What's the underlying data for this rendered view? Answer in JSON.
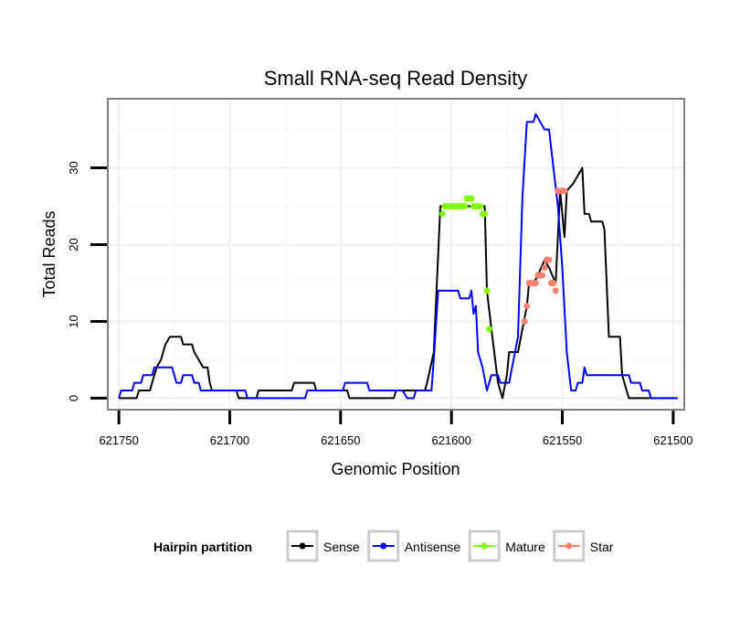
{
  "chart_data": {
    "type": "line",
    "title": "Small RNA-seq Read Density",
    "xlabel": "Genomic Position",
    "ylabel": "Total Reads",
    "xlim": [
      621755,
      621495
    ],
    "ylim": [
      -1.5,
      39
    ],
    "x_reversed": true,
    "x_ticks": [
      621750,
      621700,
      621650,
      621600,
      621550,
      621500
    ],
    "x_tick_labels": [
      "621750",
      "621700",
      "621650",
      "621600",
      "621550",
      "621500"
    ],
    "y_ticks": [
      0,
      10,
      20,
      30
    ],
    "y_tick_labels": [
      "0",
      "10",
      "20",
      "30"
    ],
    "grid": true,
    "legend": {
      "title": "Hairpin partition",
      "position": "bottom",
      "entries": [
        {
          "name": "Sense",
          "color": "#000000"
        },
        {
          "name": "Antisense",
          "color": "#0000ff"
        },
        {
          "name": "Mature",
          "color": "#7fff00"
        },
        {
          "name": "Star",
          "color": "#fa8072"
        }
      ]
    },
    "series": [
      {
        "name": "Sense",
        "color": "#000000",
        "kind": "line",
        "points": [
          [
            621750,
            0
          ],
          [
            621742,
            0
          ],
          [
            621741,
            1
          ],
          [
            621736,
            1
          ],
          [
            621735,
            2
          ],
          [
            621733,
            4
          ],
          [
            621731,
            5
          ],
          [
            621729,
            7
          ],
          [
            621727,
            8
          ],
          [
            621722,
            8
          ],
          [
            621721,
            7
          ],
          [
            621717,
            7
          ],
          [
            621716,
            6
          ],
          [
            621714,
            5
          ],
          [
            621712,
            4
          ],
          [
            621710,
            4
          ],
          [
            621709,
            2
          ],
          [
            621708,
            1
          ],
          [
            621697,
            1
          ],
          [
            621696,
            0
          ],
          [
            621688,
            0
          ],
          [
            621687,
            1
          ],
          [
            621672,
            1
          ],
          [
            621671,
            2
          ],
          [
            621662,
            2
          ],
          [
            621661,
            1
          ],
          [
            621647,
            1
          ],
          [
            621646,
            0
          ],
          [
            621626,
            0
          ],
          [
            621625,
            1
          ],
          [
            621612,
            1
          ],
          [
            621611,
            2
          ],
          [
            621608,
            6
          ],
          [
            621605,
            25
          ],
          [
            621585,
            25
          ],
          [
            621584,
            14
          ],
          [
            621582,
            9
          ],
          [
            621579,
            2
          ],
          [
            621577,
            0
          ],
          [
            621575,
            3
          ],
          [
            621574,
            6
          ],
          [
            621570,
            6
          ],
          [
            621566,
            12
          ],
          [
            621565,
            15
          ],
          [
            621563,
            15
          ],
          [
            621561,
            16
          ],
          [
            621558,
            18
          ],
          [
            621556,
            17
          ],
          [
            621553,
            15
          ],
          [
            621551,
            27
          ],
          [
            621549,
            21
          ],
          [
            621548,
            27
          ],
          [
            621545,
            28
          ],
          [
            621543,
            29
          ],
          [
            621541,
            30
          ],
          [
            621540,
            24
          ],
          [
            621538,
            24
          ],
          [
            621537,
            23
          ],
          [
            621532,
            23
          ],
          [
            621531,
            22
          ],
          [
            621529,
            8
          ],
          [
            621524,
            8
          ],
          [
            621523,
            3
          ],
          [
            621521,
            1
          ],
          [
            621520,
            0
          ],
          [
            621498,
            0
          ]
        ]
      },
      {
        "name": "Antisense",
        "color": "#0000ff",
        "kind": "line",
        "points": [
          [
            621750,
            0
          ],
          [
            621749,
            1
          ],
          [
            621744,
            1
          ],
          [
            621743,
            2
          ],
          [
            621740,
            2
          ],
          [
            621739,
            3
          ],
          [
            621735,
            3
          ],
          [
            621734,
            4
          ],
          [
            621726,
            4
          ],
          [
            621724,
            2
          ],
          [
            621722,
            2
          ],
          [
            621721,
            3
          ],
          [
            621717,
            3
          ],
          [
            621716,
            2
          ],
          [
            621714,
            2
          ],
          [
            621713,
            1
          ],
          [
            621693,
            1
          ],
          [
            621692,
            0
          ],
          [
            621666,
            0
          ],
          [
            621665,
            1
          ],
          [
            621649,
            1
          ],
          [
            621648,
            2
          ],
          [
            621638,
            2
          ],
          [
            621637,
            1
          ],
          [
            621622,
            1
          ],
          [
            621620,
            0
          ],
          [
            621617,
            0
          ],
          [
            621616,
            1
          ],
          [
            621609,
            1
          ],
          [
            621608,
            5
          ],
          [
            621606,
            14
          ],
          [
            621597,
            14
          ],
          [
            621596,
            13
          ],
          [
            621592,
            13
          ],
          [
            621591,
            14
          ],
          [
            621590,
            11
          ],
          [
            621589,
            12
          ],
          [
            621588,
            6
          ],
          [
            621586,
            4
          ],
          [
            621584,
            1
          ],
          [
            621582,
            3
          ],
          [
            621579,
            3
          ],
          [
            621578,
            2
          ],
          [
            621574,
            2
          ],
          [
            621572,
            5
          ],
          [
            621570,
            8
          ],
          [
            621568,
            26
          ],
          [
            621566,
            36
          ],
          [
            621563,
            36
          ],
          [
            621562,
            37
          ],
          [
            621560,
            36
          ],
          [
            621558,
            35
          ],
          [
            621556,
            35
          ],
          [
            621554,
            30
          ],
          [
            621552,
            25
          ],
          [
            621550,
            17
          ],
          [
            621548,
            6
          ],
          [
            621546,
            1
          ],
          [
            621544,
            1
          ],
          [
            621543,
            2
          ],
          [
            621541,
            2
          ],
          [
            621540,
            4
          ],
          [
            621539,
            3
          ],
          [
            621520,
            3
          ],
          [
            621519,
            2
          ],
          [
            621515,
            2
          ],
          [
            621514,
            1
          ],
          [
            621511,
            1
          ],
          [
            621510,
            0
          ],
          [
            621498,
            0
          ]
        ]
      },
      {
        "name": "Mature",
        "color": "#7fff00",
        "kind": "points",
        "points": [
          [
            621604,
            24
          ],
          [
            621603,
            25
          ],
          [
            621602,
            25
          ],
          [
            621601,
            25
          ],
          [
            621600,
            25
          ],
          [
            621599,
            25
          ],
          [
            621598,
            25
          ],
          [
            621597,
            25
          ],
          [
            621596,
            25
          ],
          [
            621595,
            25
          ],
          [
            621594,
            25
          ],
          [
            621593,
            26
          ],
          [
            621592,
            26
          ],
          [
            621591,
            26
          ],
          [
            621590,
            25
          ],
          [
            621589,
            25
          ],
          [
            621588,
            25
          ],
          [
            621587,
            25
          ],
          [
            621586,
            24
          ],
          [
            621585,
            24
          ],
          [
            621584,
            14
          ],
          [
            621583,
            9
          ]
        ]
      },
      {
        "name": "Star",
        "color": "#fa8072",
        "kind": "points",
        "points": [
          [
            621567,
            10
          ],
          [
            621566,
            12
          ],
          [
            621565,
            15
          ],
          [
            621564,
            15
          ],
          [
            621563,
            15
          ],
          [
            621562,
            15
          ],
          [
            621561,
            16
          ],
          [
            621560,
            16
          ],
          [
            621559,
            16
          ],
          [
            621558,
            17
          ],
          [
            621557,
            18
          ],
          [
            621556,
            18
          ],
          [
            621555,
            15
          ],
          [
            621554,
            15
          ],
          [
            621553,
            14
          ],
          [
            621552,
            27
          ],
          [
            621551,
            27
          ],
          [
            621550,
            27
          ],
          [
            621549,
            27
          ]
        ]
      }
    ]
  }
}
